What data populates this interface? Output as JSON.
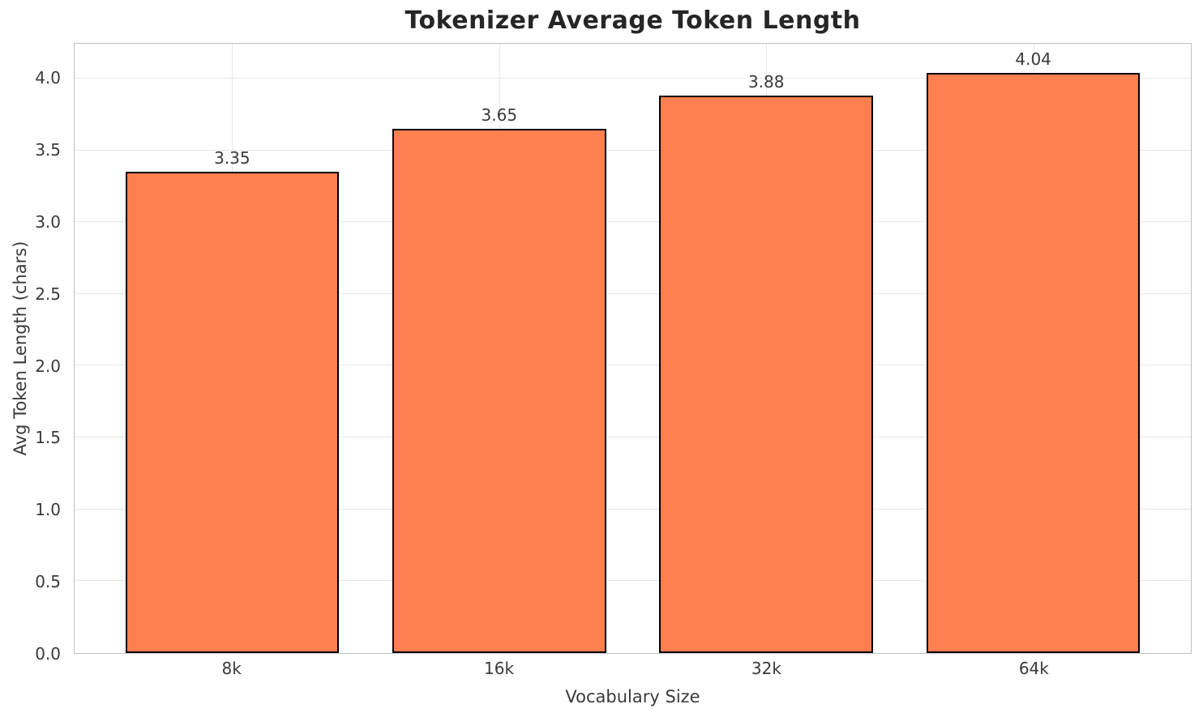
{
  "chart_data": {
    "type": "bar",
    "title": "Tokenizer Average Token Length",
    "xlabel": "Vocabulary Size",
    "ylabel": "Avg Token Length (chars)",
    "categories": [
      "8k",
      "16k",
      "32k",
      "64k"
    ],
    "values": [
      3.35,
      3.65,
      3.88,
      4.04
    ],
    "value_labels": [
      "3.35",
      "3.65",
      "3.88",
      "4.04"
    ],
    "ytick_labels": [
      "0.0",
      "0.5",
      "1.0",
      "1.5",
      "2.0",
      "2.5",
      "3.0",
      "3.5",
      "4.0"
    ],
    "yticks": [
      0.0,
      0.5,
      1.0,
      1.5,
      2.0,
      2.5,
      3.0,
      3.5,
      4.0
    ],
    "ylim": [
      0,
      4.242
    ],
    "xlim": [
      -0.59,
      3.59
    ],
    "bar_width": 0.8,
    "grid": true,
    "legend": null,
    "colors": {
      "bar_fill": "#FF7F50",
      "bar_edge": "#000000",
      "grid": "#e7e7e7",
      "spine": "#c0c0c0",
      "text": "#3a3a3a",
      "title": "#262626",
      "background": "#ffffff"
    }
  }
}
